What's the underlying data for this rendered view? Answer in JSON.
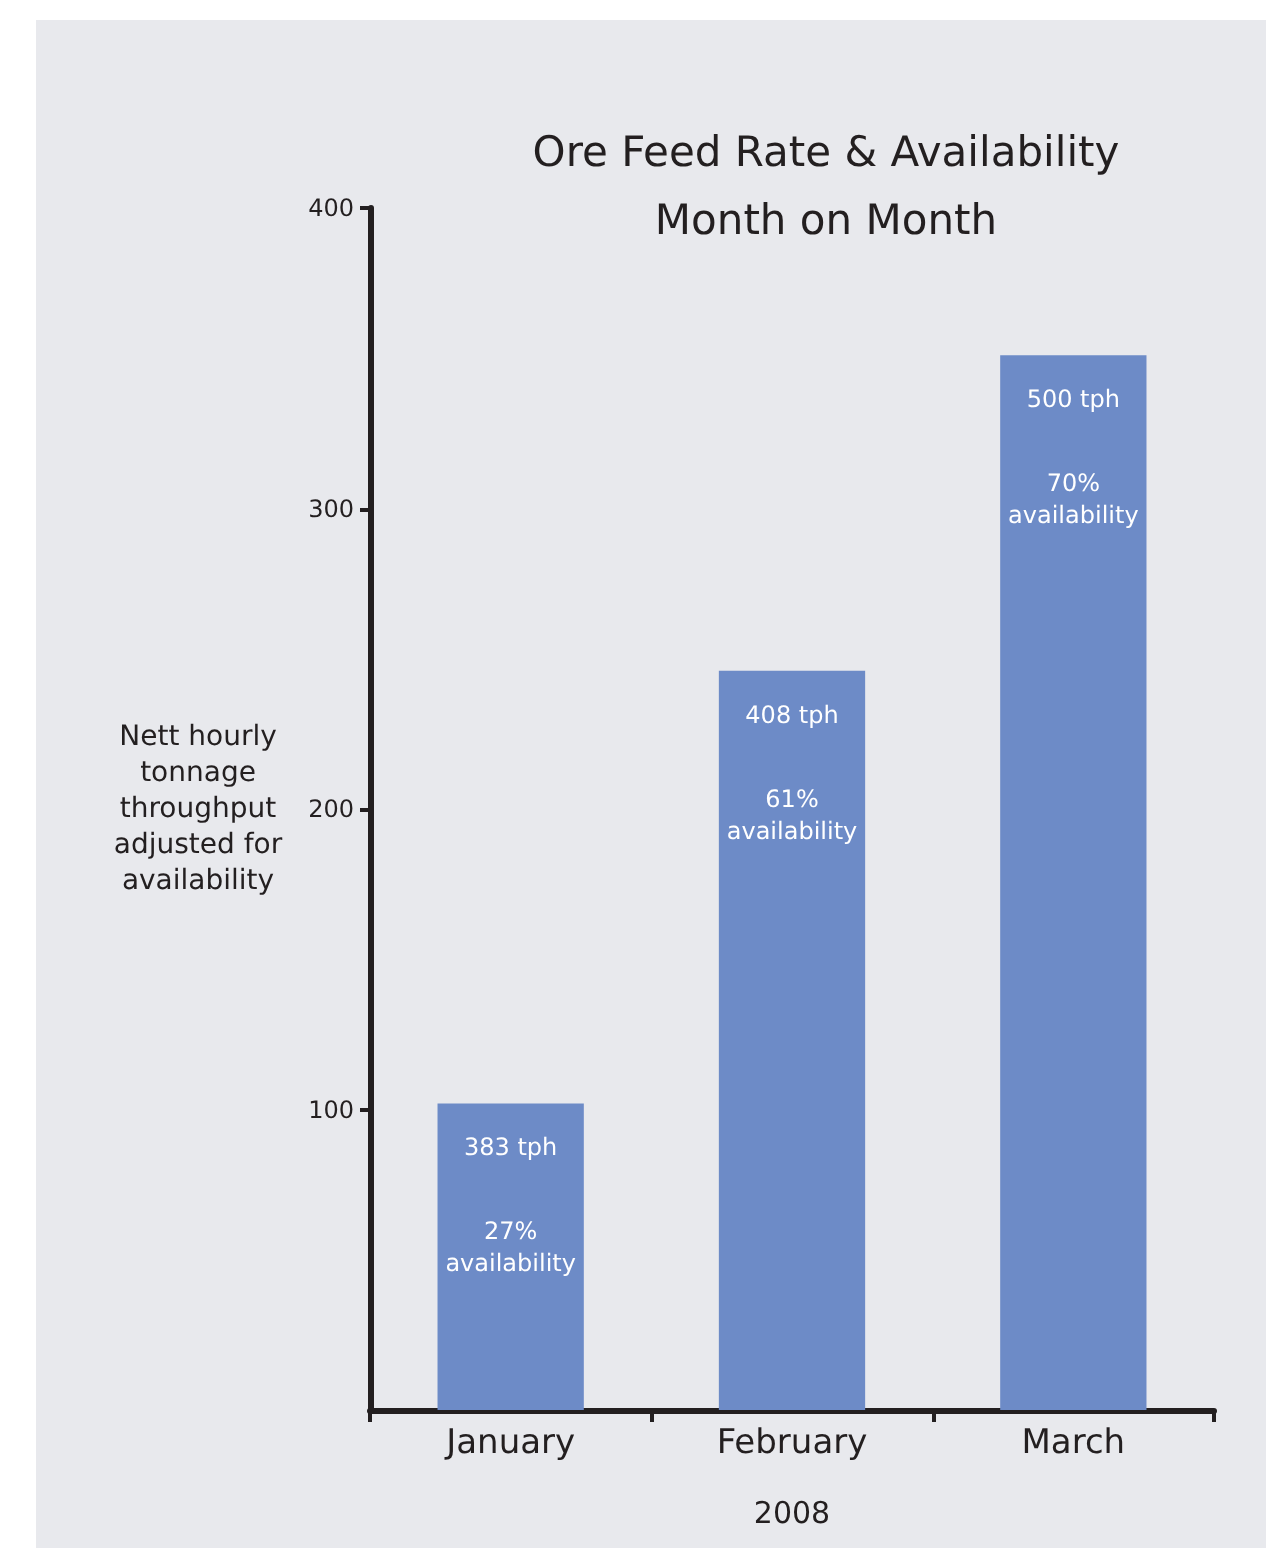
{
  "chart_data": {
    "type": "bar",
    "title": "Ore Feed Rate & Availability\nMonth on Month",
    "xlabel": "2008",
    "ylabel": "Nett hourly\ntonnage\nthroughput\nadjusted for\navailability",
    "categories": [
      "January",
      "February",
      "March"
    ],
    "values": [
      102,
      246,
      351
    ],
    "annotations": [
      "383 tph",
      "27%\navailability",
      "408 tph",
      "61%\navailability",
      "500 tph",
      "70%\navailability"
    ],
    "color": "#6d8bc7",
    "ylim": [
      0,
      400
    ],
    "yticks": [
      100,
      200,
      300,
      400
    ],
    "grid": false
  }
}
